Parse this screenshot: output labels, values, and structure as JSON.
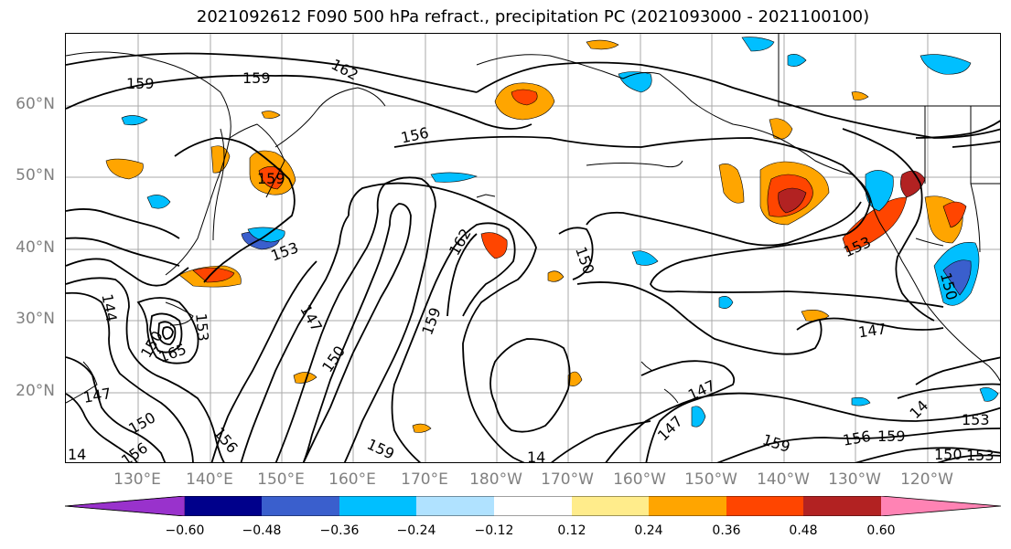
{
  "title": "2021092612 F090 500 hPa refract., precipitation PC (2021093000 - 2021100100)",
  "lat_labels": [
    "60°N",
    "50°N",
    "40°N",
    "30°N",
    "20°N"
  ],
  "lon_labels": [
    "130°E",
    "140°E",
    "150°E",
    "160°E",
    "170°E",
    "180°W",
    "170°W",
    "160°W",
    "150°W",
    "140°W",
    "130°W",
    "120°W"
  ],
  "contour_labels": [
    "159",
    "159",
    "162",
    "156",
    "159",
    "153",
    "162",
    "150",
    "147",
    "150",
    "159",
    "153",
    "147",
    "150",
    "147",
    "159",
    "156",
    "159",
    "153",
    "150",
    "153",
    "147",
    "156",
    "156",
    "150",
    "159",
    "147",
    "14",
    "150",
    "14",
    "165",
    "153",
    "144",
    "14"
  ],
  "colorbar": {
    "ticks": [
      "−0.60",
      "−0.48",
      "−0.36",
      "−0.24",
      "−0.12",
      "0.12",
      "0.24",
      "0.36",
      "0.48",
      "0.60"
    ],
    "colors": [
      "#9932cc",
      "#00008b",
      "#3a5fcd",
      "#00bfff",
      "#b0e2ff",
      "#ffffff",
      "#ffec8b",
      "#ffa500",
      "#ff4500",
      "#b22222",
      "#ff83b4"
    ]
  }
}
